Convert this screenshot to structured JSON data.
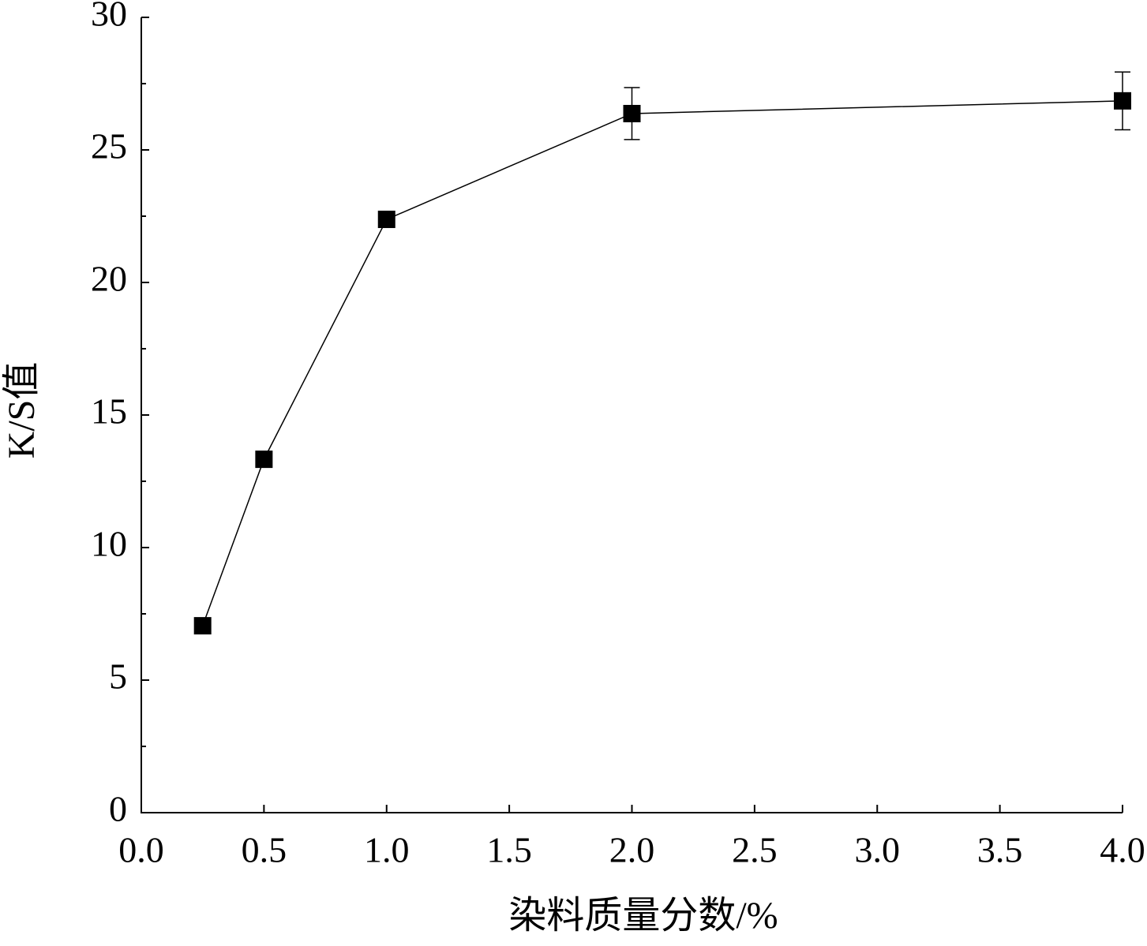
{
  "chart_data": {
    "type": "line",
    "xlabel": "染料质量分数/%",
    "ylabel": "K/S值",
    "x": [
      0.25,
      0.5,
      1.0,
      2.0,
      4.0
    ],
    "series": [
      {
        "color": "#000000",
        "values": [
          7.05,
          13.33,
          22.38,
          26.37,
          26.85
        ],
        "errors": [
          null,
          null,
          null,
          0.98,
          1.09
        ]
      }
    ],
    "xlim": [
      0,
      4
    ],
    "xticks": [
      {
        "value": 0,
        "label": "0.0"
      },
      0.5,
      {
        "value": 1,
        "label": "1.0"
      },
      1.5,
      {
        "value": 2,
        "label": "2.0"
      },
      2.5,
      {
        "value": 3,
        "label": "3.0"
      },
      3.5,
      {
        "value": 4,
        "label": "4.0"
      }
    ],
    "ylim": [
      0,
      30
    ],
    "yticks": [
      0,
      5,
      10,
      15,
      20,
      25,
      30
    ],
    "yminorticks": [
      2.5,
      7.5,
      12.5,
      17.5,
      22.5,
      27.5
    ],
    "grid": false
  }
}
